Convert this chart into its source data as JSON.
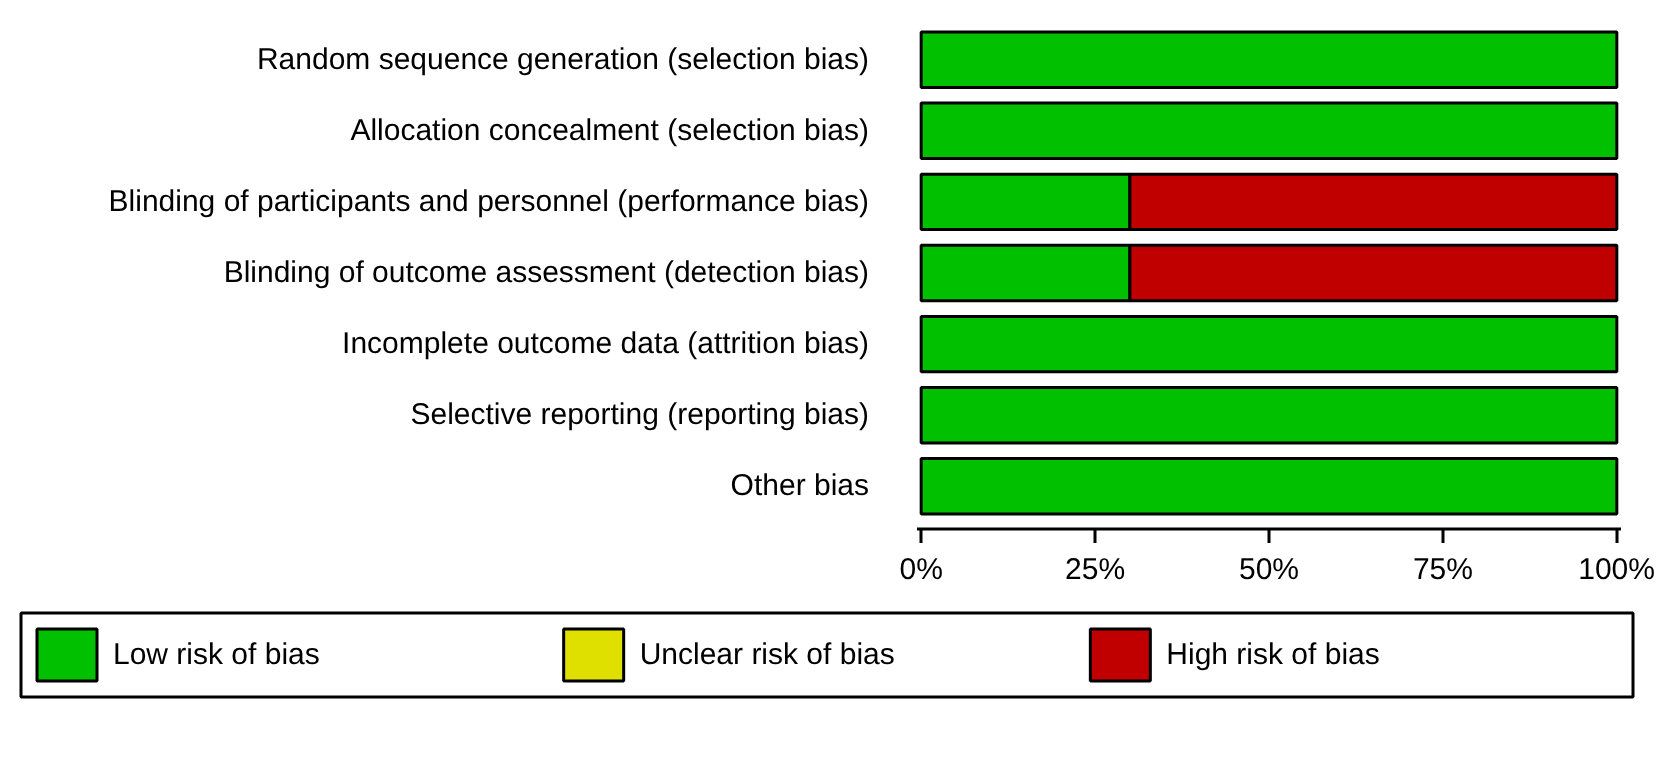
{
  "chart_data": {
    "type": "bar",
    "orientation": "horizontal",
    "stacked": true,
    "categories": [
      "Random sequence generation (selection bias)",
      "Allocation concealment (selection bias)",
      "Blinding of participants and personnel (performance bias)",
      "Blinding of outcome assessment (detection bias)",
      "Incomplete outcome data (attrition bias)",
      "Selective reporting (reporting bias)",
      "Other bias"
    ],
    "series": [
      {
        "name": "Low risk of bias",
        "color": "#00c000",
        "values": [
          100,
          100,
          30,
          30,
          100,
          100,
          100
        ]
      },
      {
        "name": "Unclear risk of bias",
        "color": "#e0e000",
        "values": [
          0,
          0,
          0,
          0,
          0,
          0,
          0
        ]
      },
      {
        "name": "High risk of bias",
        "color": "#c00000",
        "values": [
          0,
          0,
          70,
          70,
          0,
          0,
          0
        ]
      }
    ],
    "xlim": [
      0,
      100
    ],
    "xticks": [
      {
        "value": 0,
        "label": "0%"
      },
      {
        "value": 25,
        "label": "25%"
      },
      {
        "value": 50,
        "label": "50%"
      },
      {
        "value": 75,
        "label": "75%"
      },
      {
        "value": 100,
        "label": "100%"
      }
    ],
    "grid": false,
    "legend": "bottom"
  }
}
